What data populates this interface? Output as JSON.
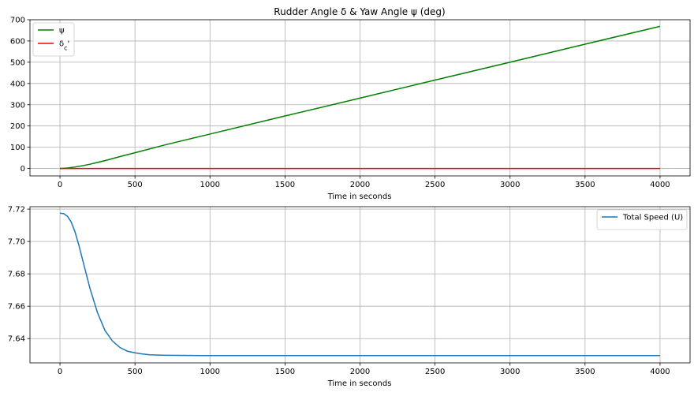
{
  "chart_data": [
    {
      "type": "line",
      "title": "Rudder Angle δ & Yaw Angle ψ (deg)",
      "xlabel": "Time in seconds",
      "ylabel": "",
      "xlim": [
        -200,
        4200
      ],
      "ylim": [
        -35,
        700
      ],
      "xticks": [
        0,
        500,
        1000,
        1500,
        2000,
        2500,
        3000,
        3500,
        4000
      ],
      "yticks": [
        0,
        100,
        200,
        300,
        400,
        500,
        600,
        700
      ],
      "grid": true,
      "legend_position": "upper left",
      "series": [
        {
          "name": "ψ",
          "color": "#008000",
          "x": [
            0,
            50,
            100,
            150,
            200,
            300,
            400,
            500,
            700,
            1000,
            1500,
            2000,
            2500,
            3000,
            3500,
            4000
          ],
          "y": [
            0,
            2,
            7,
            13,
            20,
            37,
            56,
            74,
            111,
            162,
            247,
            331,
            416,
            500,
            585,
            669
          ]
        },
        {
          "name": "δc'",
          "color": "#ff0000",
          "x": [
            0,
            4000
          ],
          "y": [
            0,
            0
          ]
        }
      ]
    },
    {
      "type": "line",
      "title": "",
      "xlabel": "Time in seconds",
      "ylabel": "",
      "xlim": [
        -200,
        4200
      ],
      "ylim": [
        7.625,
        7.7215
      ],
      "xticks": [
        0,
        500,
        1000,
        1500,
        2000,
        2500,
        3000,
        3500,
        4000
      ],
      "yticks": [
        7.64,
        7.66,
        7.68,
        7.7,
        7.72
      ],
      "grid": true,
      "legend_position": "upper right",
      "series": [
        {
          "name": "Total Speed (U)",
          "color": "#1f77b4",
          "x": [
            0,
            25,
            50,
            75,
            100,
            125,
            150,
            175,
            200,
            250,
            300,
            350,
            400,
            450,
            500,
            550,
            600,
            700,
            800,
            1000,
            1500,
            2000,
            2500,
            3000,
            3500,
            4000
          ],
          "y": [
            7.7175,
            7.7172,
            7.7155,
            7.712,
            7.706,
            7.698,
            7.689,
            7.68,
            7.671,
            7.656,
            7.645,
            7.6385,
            7.6345,
            7.6322,
            7.6312,
            7.6305,
            7.63,
            7.6297,
            7.6296,
            7.6295,
            7.6295,
            7.6295,
            7.6295,
            7.6295,
            7.6295,
            7.6295
          ]
        }
      ]
    }
  ]
}
